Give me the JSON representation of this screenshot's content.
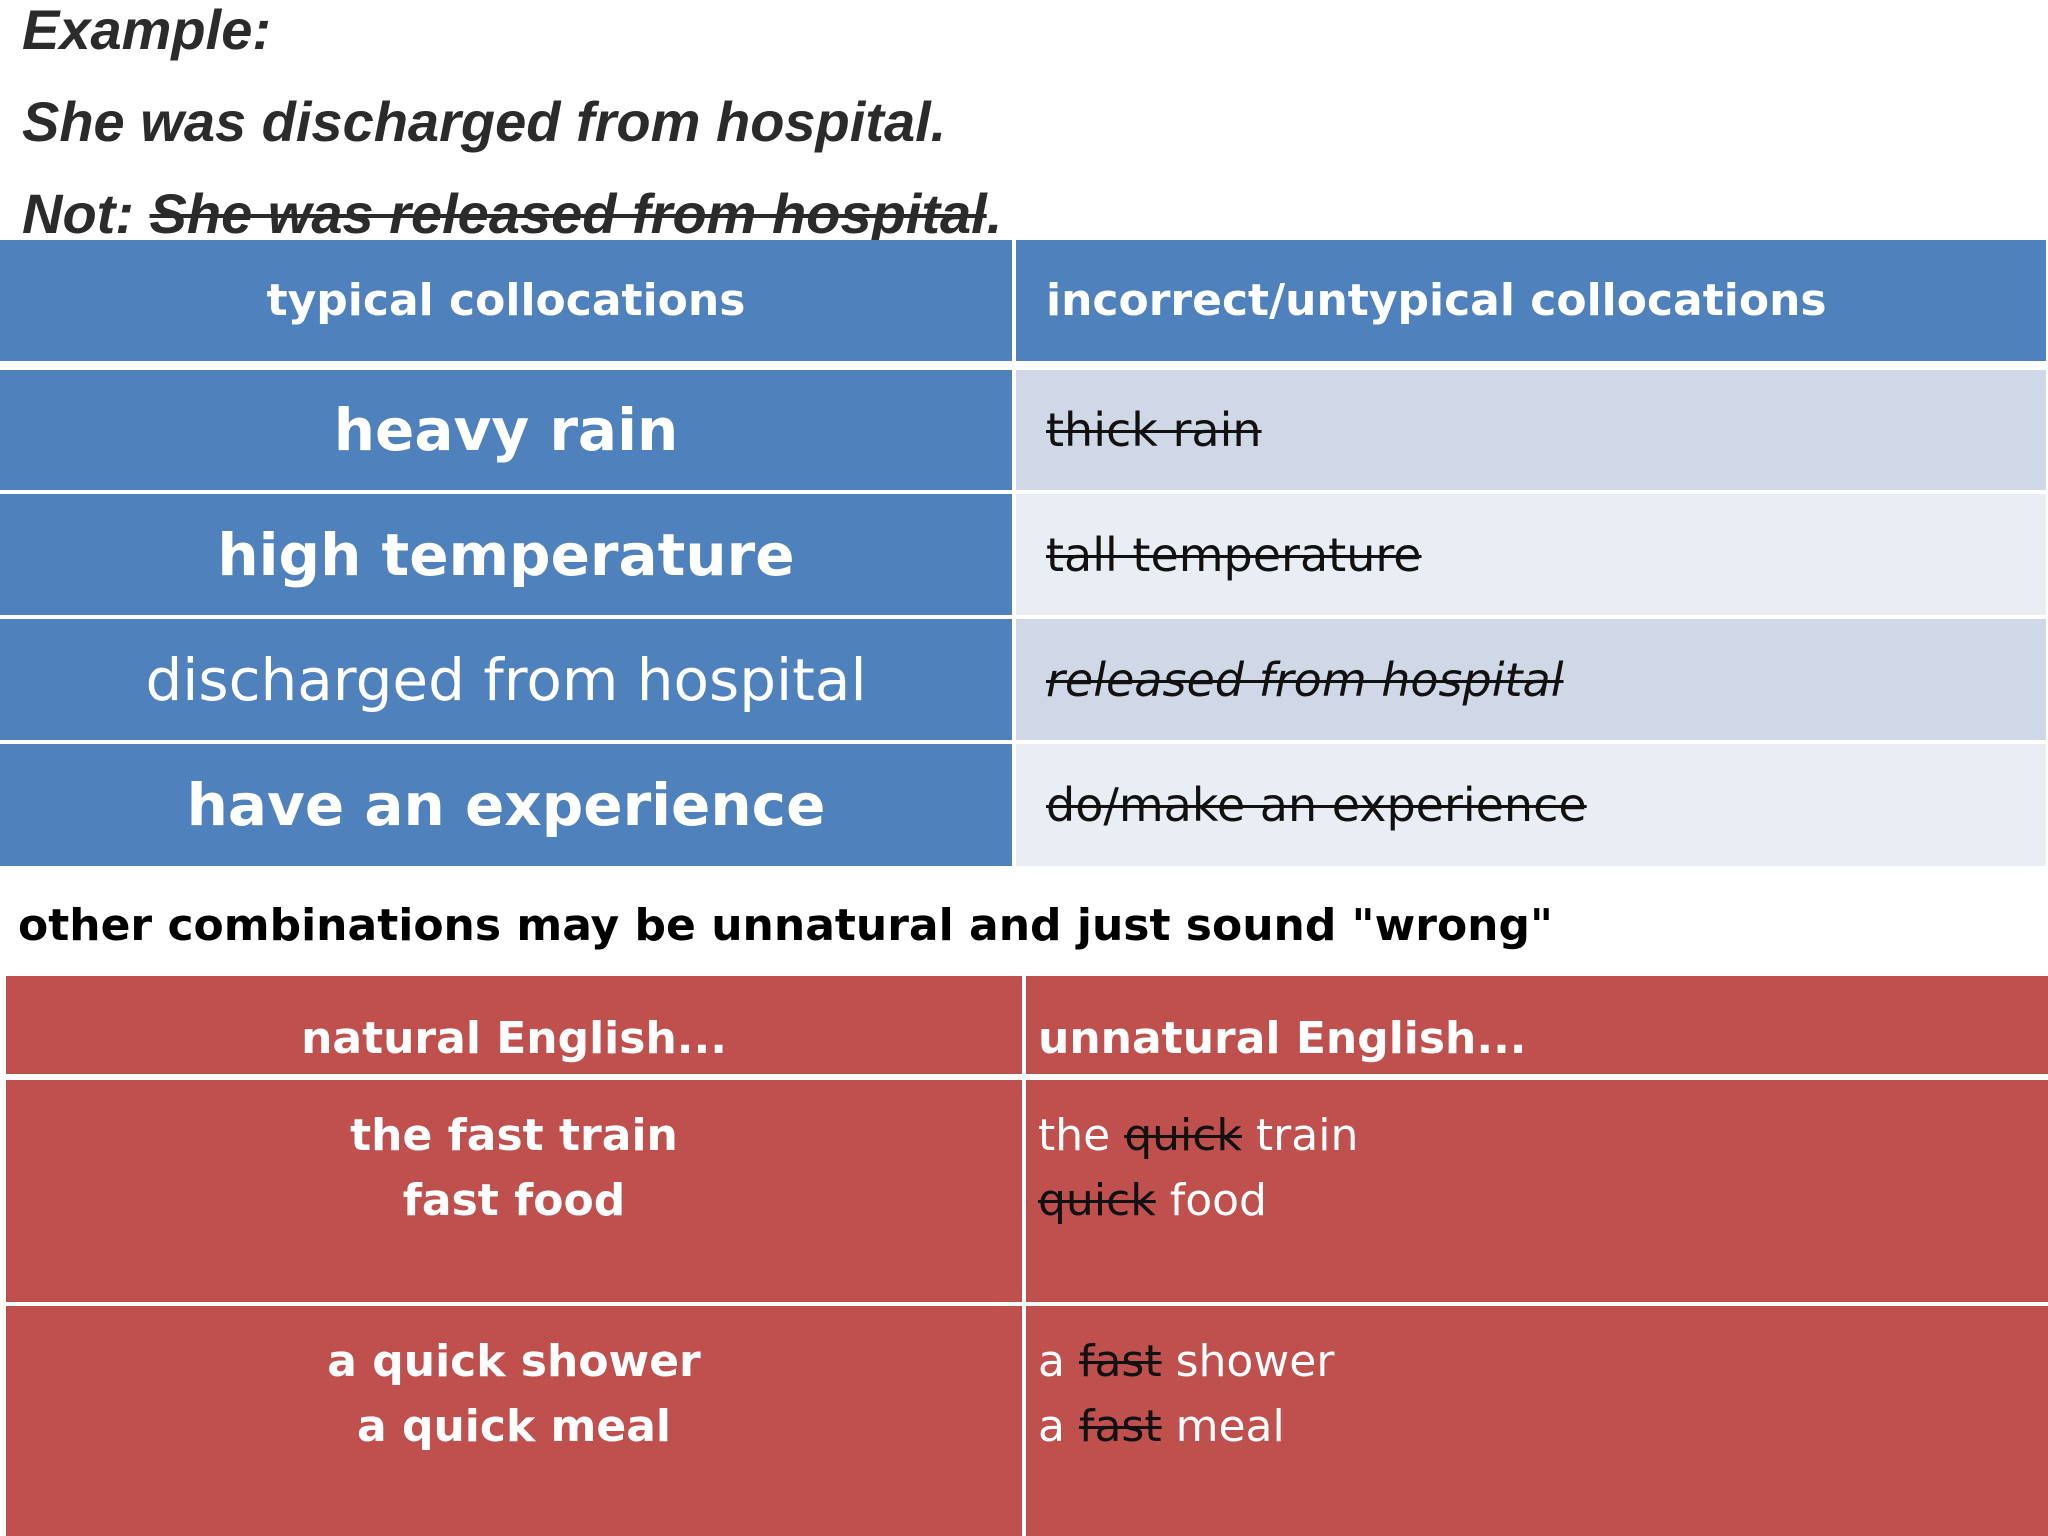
{
  "example": {
    "label": "Example:",
    "sentence": "She was discharged from hospital.",
    "not_prefix": "Not: ",
    "not_struck": "She was released from hospital",
    "not_suffix": "."
  },
  "collocations_table": {
    "header_left": "typical collocations",
    "header_right": "incorrect/untypical collocations",
    "rows": [
      {
        "typical": "heavy rain",
        "incorrect": "thick rain"
      },
      {
        "typical": "high temperature",
        "incorrect": "tall temperature"
      },
      {
        "typical": "discharged from hospital",
        "incorrect": "released from hospital"
      },
      {
        "typical": "have an experience",
        "incorrect": "do/make an experience"
      }
    ]
  },
  "note": "other combinations may be unnatural and just sound \"wrong\"",
  "natural_table": {
    "header_left": "natural English...",
    "header_right": "unnatural English...",
    "rows": [
      {
        "natural": [
          "the fast train",
          "fast food"
        ],
        "unnatural": [
          {
            "before": "the ",
            "struck": "quick",
            "after": " train"
          },
          {
            "before": "",
            "struck": "quick",
            "after": " food"
          }
        ]
      },
      {
        "natural": [
          "a quick shower",
          "a quick meal"
        ],
        "unnatural": [
          {
            "before": "a ",
            "struck": "fast",
            "after": " shower"
          },
          {
            "before": "a ",
            "struck": "fast",
            "after": " meal"
          }
        ]
      }
    ]
  },
  "colors": {
    "blue": "#4f81bd",
    "light_blue_1": "#d0d8e8",
    "light_blue_2": "#e9edf4",
    "red": "#c0504d"
  }
}
